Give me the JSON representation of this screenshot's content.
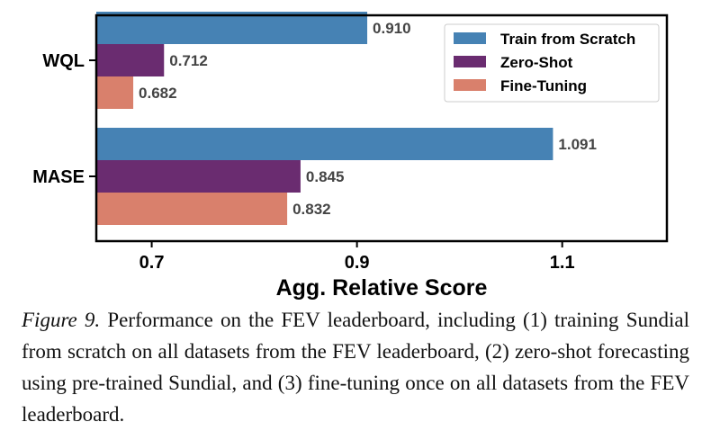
{
  "chart_data": {
    "type": "bar",
    "orientation": "horizontal",
    "categories": [
      "WQL",
      "MASE"
    ],
    "series": [
      {
        "name": "Train from Scratch",
        "color": "#4682b4",
        "values": [
          0.91,
          1.091
        ]
      },
      {
        "name": "Zero-Shot",
        "color": "#6a2c70",
        "values": [
          0.712,
          0.845
        ]
      },
      {
        "name": "Fine-Tuning",
        "color": "#d9806c",
        "values": [
          0.682,
          0.832
        ]
      }
    ],
    "value_labels": [
      [
        "0.910",
        "1.091"
      ],
      [
        "0.712",
        "0.845"
      ],
      [
        "0.682",
        "0.832"
      ]
    ],
    "xlabel": "Agg. Relative Score",
    "ylabel": "",
    "xlim": [
      0.646,
      1.202
    ],
    "xticks": [
      0.7,
      0.9,
      1.1
    ],
    "xtick_labels": [
      "0.7",
      "0.9",
      "1.1"
    ],
    "legend_position": "top-right",
    "grid": false
  },
  "caption": {
    "label": "Figure 9.",
    "text": " Performance on the FEV leaderboard, including (1) training Sundial from scratch on all datasets from the FEV leaderboard, (2) zero-shot forecasting using pre-trained Sundial, and (3) fine-tuning once on all datasets from the FEV leaderboard."
  }
}
